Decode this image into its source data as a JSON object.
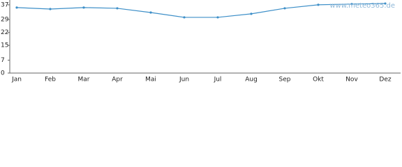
{
  "chart_data": {
    "type": "line",
    "watermark": "www.meteo365.de",
    "categories": [
      "Jan",
      "Feb",
      "Mar",
      "Apr",
      "Mai",
      "Jun",
      "Jul",
      "Aug",
      "Sep",
      "Okt",
      "Nov",
      "Dez"
    ],
    "series": [
      {
        "color": "#3d8fc8",
        "values": [
          35.5,
          34.7,
          35.5,
          35.1,
          32.8,
          30.2,
          30.2,
          32.1,
          35.1,
          37,
          37.4,
          37.7
        ]
      }
    ],
    "ylim": [
      0,
      39.6
    ],
    "yticks": [
      0,
      7,
      15,
      22,
      29,
      37
    ]
  }
}
